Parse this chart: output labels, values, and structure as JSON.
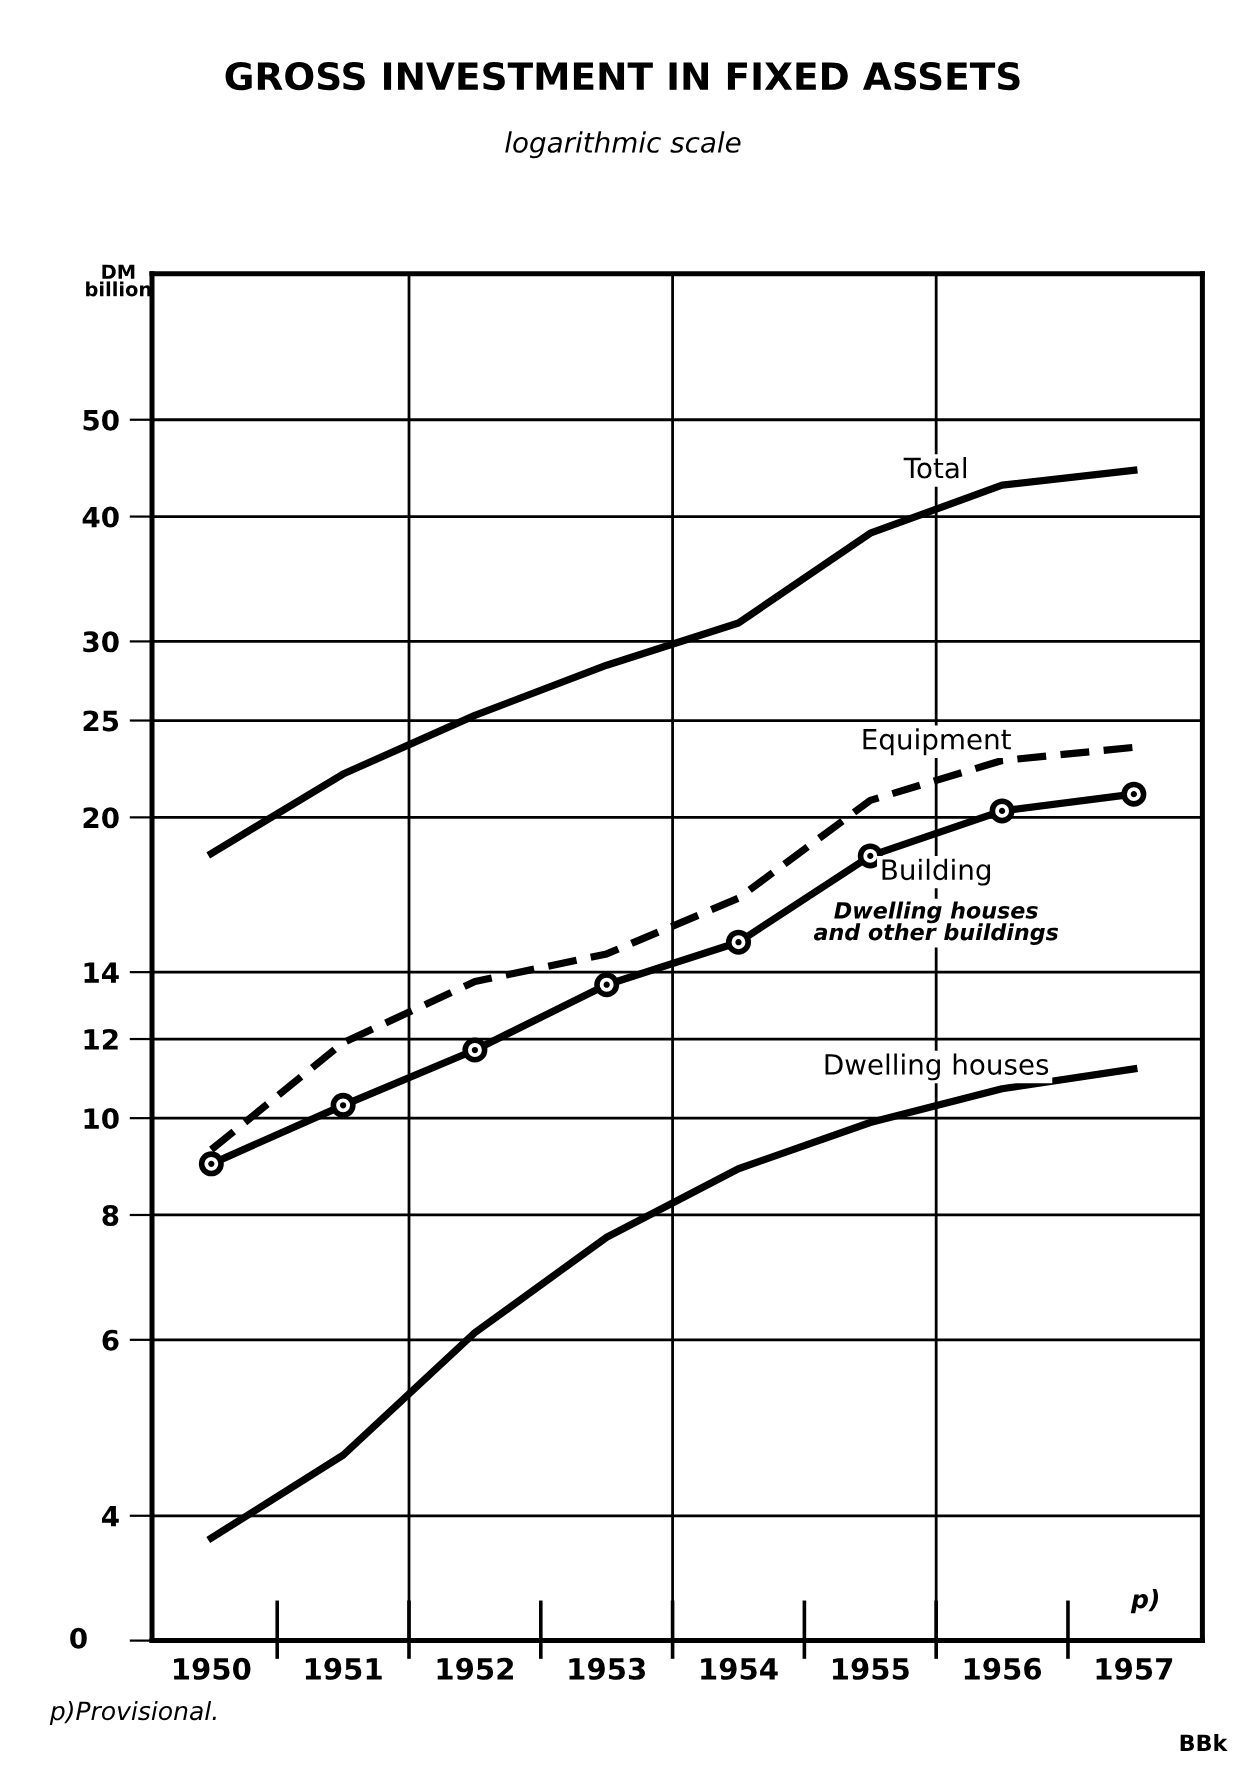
{
  "chart_data": {
    "type": "line",
    "title": "GROSS INVESTMENT IN FIXED ASSETS",
    "subtitle": "logarithmic scale",
    "ylabel": "DM\nbillion",
    "categories": [
      "1950",
      "1951",
      "1952",
      "1953",
      "1954",
      "1955",
      "1956",
      "1957"
    ],
    "series": [
      {
        "name": "Total",
        "color": "#000000",
        "line_style": "solid",
        "marker": "none",
        "values": [
          18.4,
          22.1,
          25.3,
          28.4,
          31.3,
          38.5,
          43.0,
          44.5
        ]
      },
      {
        "name": "Equipment",
        "color": "#000000",
        "line_style": "dashed",
        "marker": "none",
        "values": [
          9.3,
          11.9,
          13.7,
          14.6,
          16.6,
          20.8,
          22.8,
          23.5
        ]
      },
      {
        "name": "Building",
        "color": "#000000",
        "line_style": "solid",
        "marker": "circle",
        "values": [
          9.0,
          10.3,
          11.7,
          13.6,
          15.0,
          18.3,
          20.3,
          21.1
        ]
      },
      {
        "name": "Dwelling houses",
        "color": "#000000",
        "line_style": "solid",
        "marker": "none",
        "values": [
          3.8,
          4.6,
          6.1,
          7.6,
          8.9,
          9.9,
          10.7,
          11.2
        ]
      }
    ],
    "log": true,
    "ylim": [
      3,
      70
    ],
    "yticks": [
      {
        "value": 3,
        "label": null
      },
      4,
      6,
      8,
      10,
      12,
      14,
      20,
      25,
      30,
      40,
      50
    ],
    "grid": true,
    "legend": false,
    "annotations": [
      "Dwelling houses\nand other buildings",
      "p)",
      "0",
      "p)Provisional.",
      "BBk"
    ]
  }
}
